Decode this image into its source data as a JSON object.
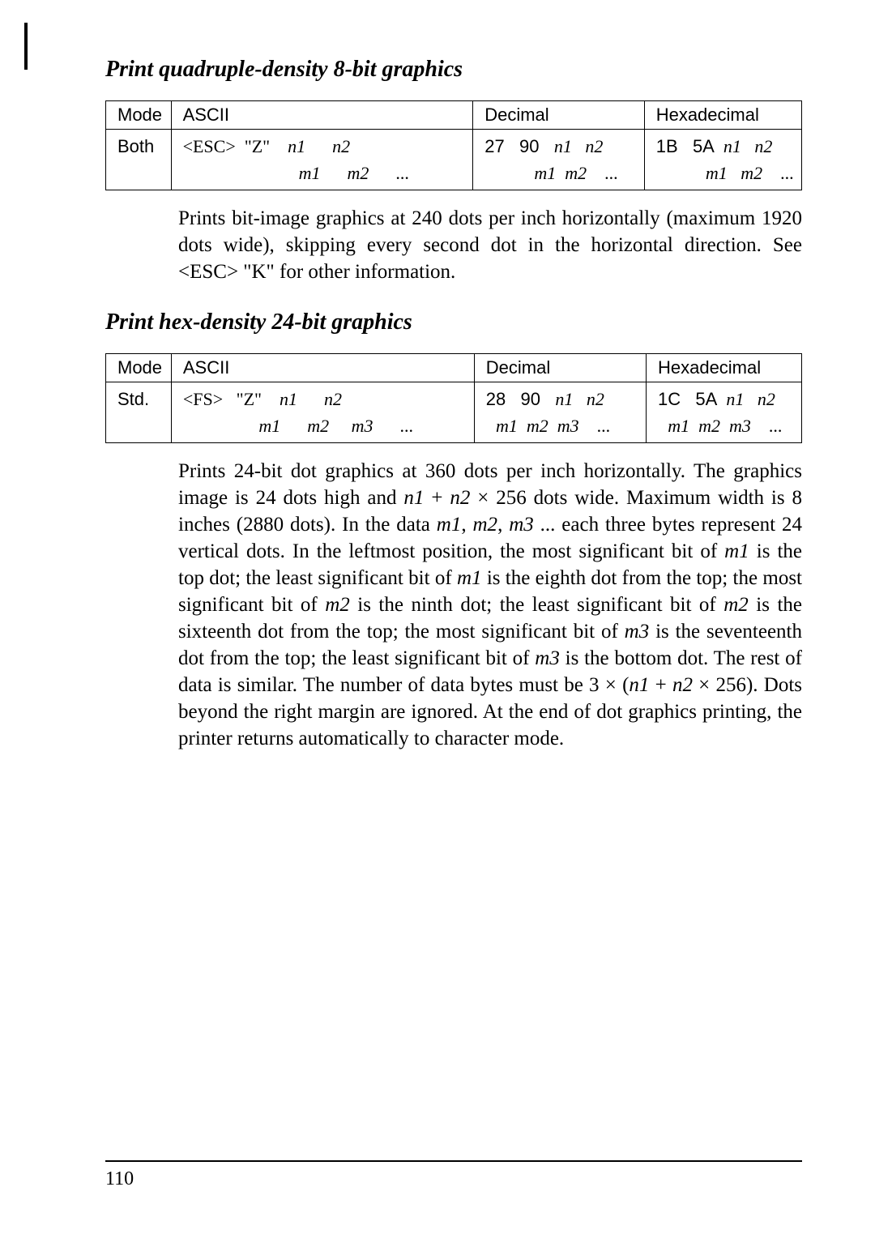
{
  "section1": {
    "heading": "Print quadruple-density 8-bit graphics",
    "table": {
      "headers": [
        "Mode",
        "ASCII",
        "Decimal",
        "Hexadecimal"
      ],
      "row": {
        "mode": "Both",
        "ascii_l1_a": "<ESC>  \"Z\"    ",
        "ascii_l1_b": "n1      n2",
        "ascii_l2_a": "                          ",
        "ascii_l2_b": "m1      m2",
        "ascii_l2_c": "      ...",
        "dec_l1_a": "27   90   ",
        "dec_l1_b": "n1   n2",
        "dec_l2_a": "          ",
        "dec_l2_b": "m1  m2",
        "dec_l2_c": "    ...",
        "hex_l1_a": "1B   5A  ",
        "hex_l1_b": "n1   n2",
        "hex_l2_a": "          ",
        "hex_l2_b": "m1   m2",
        "hex_l2_c": "    ..."
      }
    },
    "para": "Prints bit-image graphics at 240 dots per inch horizontally (maxi­mum 1920 dots wide), skipping every second dot in the horizontal direction. See <ESC> \"K\" for other information."
  },
  "section2": {
    "heading": "Print hex-density 24-bit graphics",
    "table": {
      "headers": [
        "Mode",
        "ASCII",
        "Decimal",
        "Hexadecimal"
      ],
      "row": {
        "mode": "Std.",
        "ascii_l1_a": "<FS>   \"Z\"    ",
        "ascii_l1_b": "n1      n2",
        "ascii_l2_a": "                 ",
        "ascii_l2_b": "m1      m2     m3",
        "ascii_l2_c": "      ...",
        "dec_l1_a": "28   90   ",
        "dec_l1_b": "n1   n2",
        "dec_l2_a": "  ",
        "dec_l2_b": "m1  m2  m3",
        "dec_l2_c": "    ...",
        "hex_l1_a": "1C   5A  ",
        "hex_l1_b": "n1   n2",
        "hex_l2_a": "  ",
        "hex_l2_b": "m1  m2  m3",
        "hex_l2_c": "    ..."
      }
    },
    "para_parts": [
      {
        "t": "Prints 24-bit dot graphics at 360 dots per inch horizontally. The graphics image is 24 dots high and ",
        "i": false
      },
      {
        "t": "n1",
        "i": true
      },
      {
        "t": " + ",
        "i": false
      },
      {
        "t": "n2",
        "i": true
      },
      {
        "t": " × 256 dots wide. Maxi­mum width is 8 inches (2880 dots). In the data ",
        "i": false
      },
      {
        "t": "m1",
        "i": true
      },
      {
        "t": ", ",
        "i": false
      },
      {
        "t": "m2",
        "i": true
      },
      {
        "t": ", ",
        "i": false
      },
      {
        "t": "m3",
        "i": true
      },
      {
        "t": " ... each three bytes represent 24 vertical dots. In the leftmost position, the most significant bit of ",
        "i": false
      },
      {
        "t": "m1",
        "i": true
      },
      {
        "t": " is the top dot; the least significant bit of ",
        "i": false
      },
      {
        "t": "m1",
        "i": true
      },
      {
        "t": " is the eighth dot from the top; the most significant bit of ",
        "i": false
      },
      {
        "t": "m2",
        "i": true
      },
      {
        "t": " is the ninth dot; the least significant bit of ",
        "i": false
      },
      {
        "t": "m2",
        "i": true
      },
      {
        "t": " is the sixteenth dot from the top; the most significant bit of ",
        "i": false
      },
      {
        "t": "m3",
        "i": true
      },
      {
        "t": " is the seventeenth dot from the top; the least significant bit of ",
        "i": false
      },
      {
        "t": "m3",
        "i": true
      },
      {
        "t": " is the bottom dot. The rest of data is similar. The number of data bytes must be 3 × (",
        "i": false
      },
      {
        "t": "n1",
        "i": true
      },
      {
        "t": " + ",
        "i": false
      },
      {
        "t": "n2",
        "i": true
      },
      {
        "t": " × 256). Dots beyond the right margin are ignored. At the end of dot graphics printing, the printer returns automatically to character mode.",
        "i": false
      }
    ]
  },
  "page_number": "110"
}
